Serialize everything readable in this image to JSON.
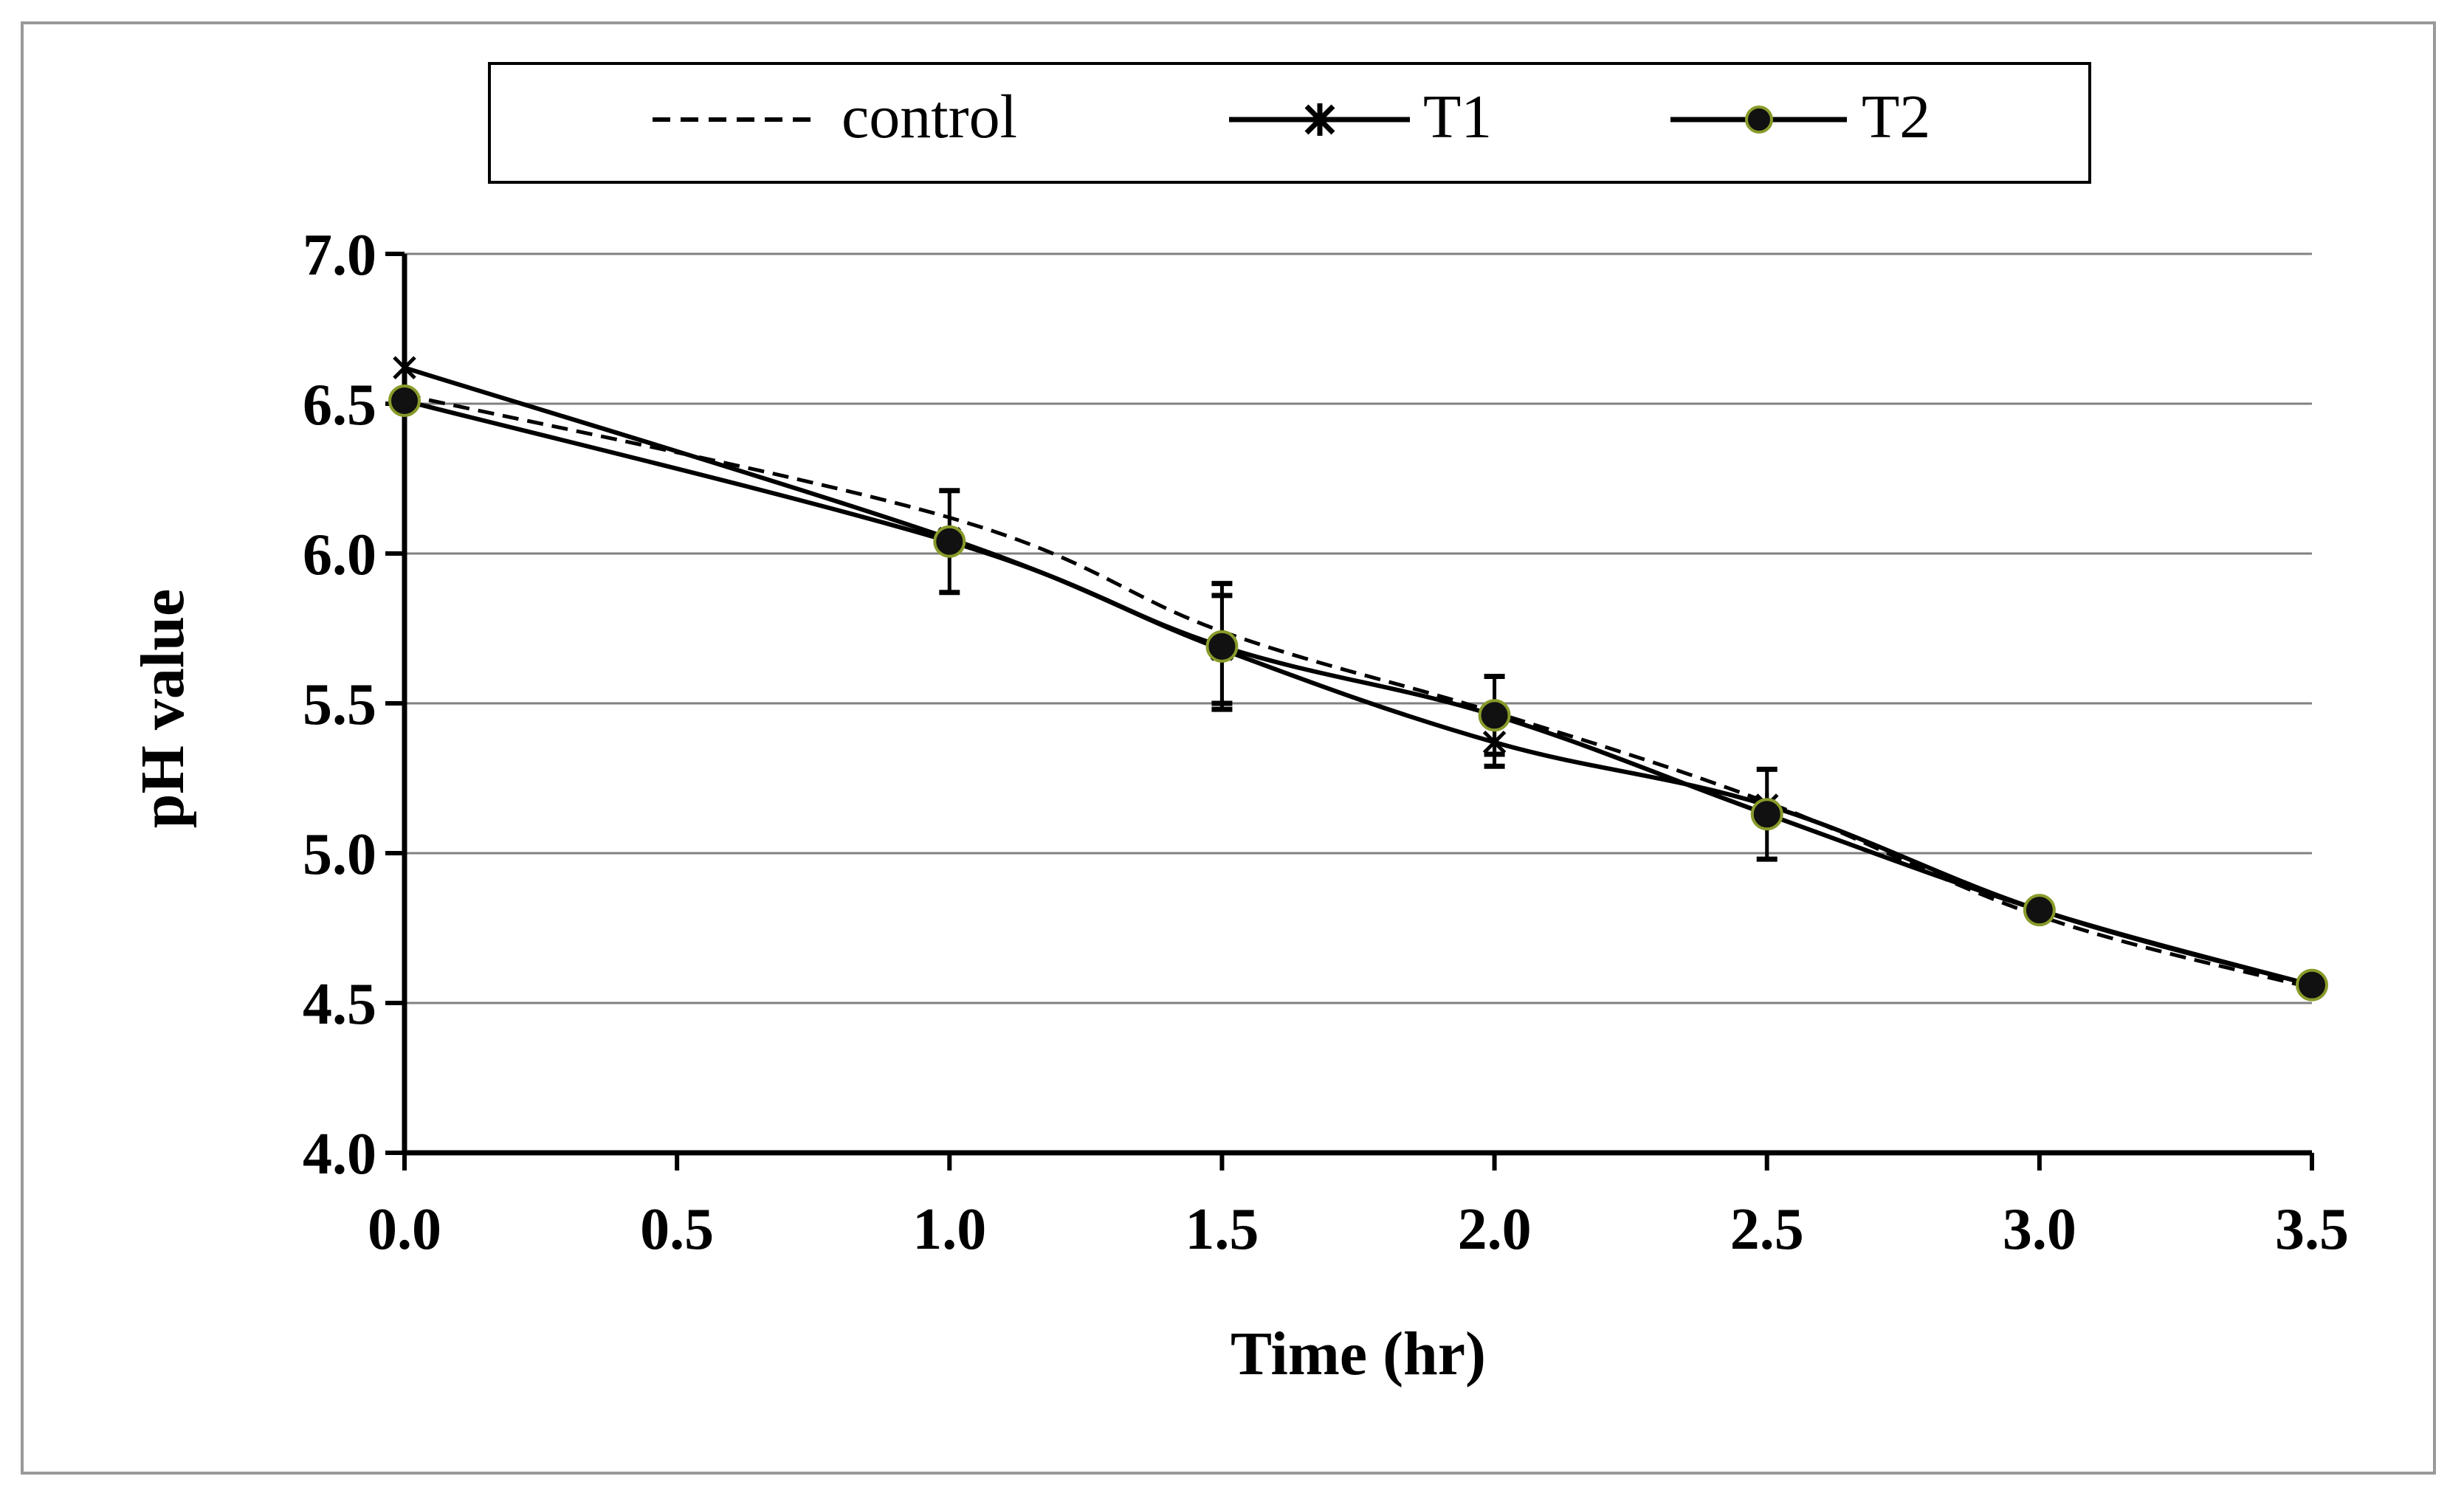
{
  "chart_data": {
    "type": "line",
    "title": "",
    "xlabel": "Time (hr)",
    "ylabel": "pH value",
    "xlim": [
      0,
      3.5
    ],
    "ylim": [
      4.0,
      7.0
    ],
    "x_ticks": [
      "0.0",
      "0.5",
      "1.0",
      "1.5",
      "2.0",
      "2.5",
      "3.0",
      "3.5"
    ],
    "y_ticks": [
      "4.0",
      "4.5",
      "5.0",
      "5.5",
      "6.0",
      "6.5",
      "7.0"
    ],
    "grid": true,
    "legend_position": "top",
    "series": [
      {
        "name": "control",
        "style": "dashed",
        "marker": "none",
        "x": [
          0,
          1.0,
          1.5,
          2.0,
          2.5,
          3.0,
          3.5
        ],
        "values": [
          6.53,
          6.12,
          5.74,
          5.47,
          5.17,
          4.79,
          4.55
        ],
        "error": [
          0,
          0,
          0,
          0,
          0,
          0,
          0
        ]
      },
      {
        "name": "T1",
        "style": "solid",
        "marker": "asterisk",
        "x": [
          0,
          1.0,
          1.5,
          2.0,
          2.5,
          3.0,
          3.5
        ],
        "values": [
          6.62,
          6.05,
          5.68,
          5.37,
          5.16,
          4.81,
          4.56
        ],
        "error": [
          0,
          0,
          0.18,
          0.08,
          0,
          0,
          0
        ]
      },
      {
        "name": "T2",
        "style": "solid",
        "marker": "circle",
        "x": [
          0,
          1.0,
          1.5,
          2.0,
          2.5,
          3.0,
          3.5
        ],
        "values": [
          6.51,
          6.04,
          5.69,
          5.46,
          5.13,
          4.81,
          4.56
        ],
        "error": [
          0,
          0.17,
          0.21,
          0.13,
          0.15,
          0,
          0
        ]
      }
    ],
    "colors": {
      "line": "#000000",
      "grid": "#808080",
      "marker_fill": "#111111",
      "marker_edge": "#8a9a2a",
      "frame": "#999999"
    }
  }
}
